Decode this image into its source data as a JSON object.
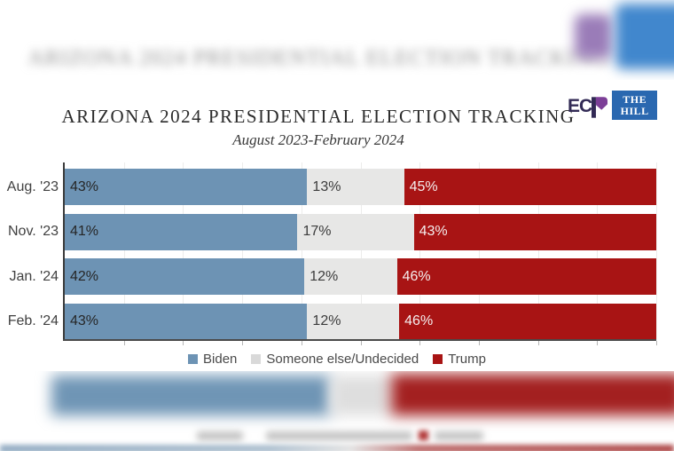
{
  "title": "ARIZONA 2024 PRESIDENTIAL ELECTION TRACKING",
  "subtitle": "August 2023-February 2024",
  "logos": {
    "ecp_ec": "EC",
    "hill_line1": "THE",
    "hill_line2": "HILL",
    "hill_bg": "#2a68b0",
    "ecp_navy": "#322a55",
    "ecp_purple": "#7c3f97"
  },
  "colors": {
    "biden": "#6d93b4",
    "undecided": "#e7e7e6",
    "trump": "#a81414",
    "axis": "#3b3b3b",
    "gridline": "#ececeb",
    "background": "#ffffff"
  },
  "chart_data": {
    "type": "bar",
    "orientation": "horizontal-stacked",
    "title": "ARIZONA 2024 PRESIDENTIAL ELECTION TRACKING",
    "subtitle": "August 2023-February 2024",
    "categories": [
      "Aug. '23",
      "Nov. '23",
      "Jan. '24",
      "Feb. '24"
    ],
    "series": [
      {
        "name": "Biden",
        "color": "#6d93b4",
        "label_color": "#262626",
        "legend_color": "#6d93b4",
        "values": [
          43,
          41,
          42,
          43
        ]
      },
      {
        "name": "Someone else/Undecided",
        "color": "#e7e7e6",
        "label_color": "#3c3c3c",
        "legend_color": "#d9d9d9",
        "values": [
          13,
          17,
          12,
          12
        ]
      },
      {
        "name": "Trump",
        "color": "#a81414",
        "label_color": "#f5eeee",
        "legend_color": "#a81414",
        "values": [
          45,
          43,
          46,
          46
        ]
      }
    ],
    "value_suffix": "%",
    "xlim": [
      0,
      100
    ],
    "grid": "vertical lines every 10%",
    "legend_position": "bottom"
  }
}
